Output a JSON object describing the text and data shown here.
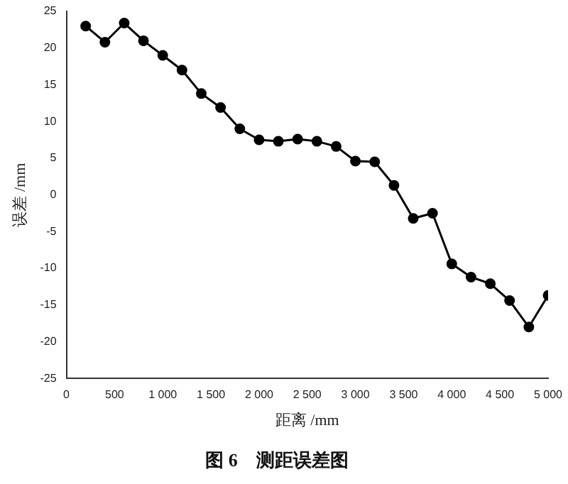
{
  "chart_data": {
    "type": "line",
    "title": "图 6　测距误差图",
    "xlabel": "距离 /mm",
    "ylabel": "误差 /mm",
    "x": [
      200,
      400,
      600,
      800,
      1000,
      1200,
      1400,
      1600,
      1800,
      2000,
      2200,
      2400,
      2600,
      2800,
      3000,
      3200,
      3400,
      3600,
      3800,
      4000,
      4200,
      4400,
      4600,
      4800,
      5000
    ],
    "series": [
      {
        "color": "#000000",
        "values": [
          23,
          20.8,
          23.4,
          21,
          19,
          17,
          13.8,
          11.9,
          9,
          7.5,
          7.3,
          7.6,
          7.3,
          6.6,
          4.6,
          4.5,
          1.3,
          -3.2,
          -2.5,
          -9.4,
          -11.2,
          -12.1,
          -14.4,
          -18,
          -13.7
        ]
      }
    ],
    "xlim": [
      0,
      5000
    ],
    "xticks": [
      0,
      500,
      {
        "value": 1000,
        "label": "1 000"
      },
      {
        "value": 1500,
        "label": "1 500"
      },
      {
        "value": 2000,
        "label": "2 000"
      },
      {
        "value": 2500,
        "label": "2 500"
      },
      {
        "value": 3000,
        "label": "3 000"
      },
      {
        "value": 3500,
        "label": "3 500"
      },
      {
        "value": 4000,
        "label": "4 000"
      },
      {
        "value": 4500,
        "label": "4 500"
      },
      {
        "value": 5000,
        "label": "5 000"
      }
    ],
    "ylim": [
      -25,
      25
    ],
    "yticks": [
      -25,
      -20,
      -15,
      -10,
      -5,
      0,
      5,
      10,
      15,
      20,
      25
    ],
    "grid": false,
    "legend": false,
    "marker": "circle",
    "line_style": "solid"
  }
}
